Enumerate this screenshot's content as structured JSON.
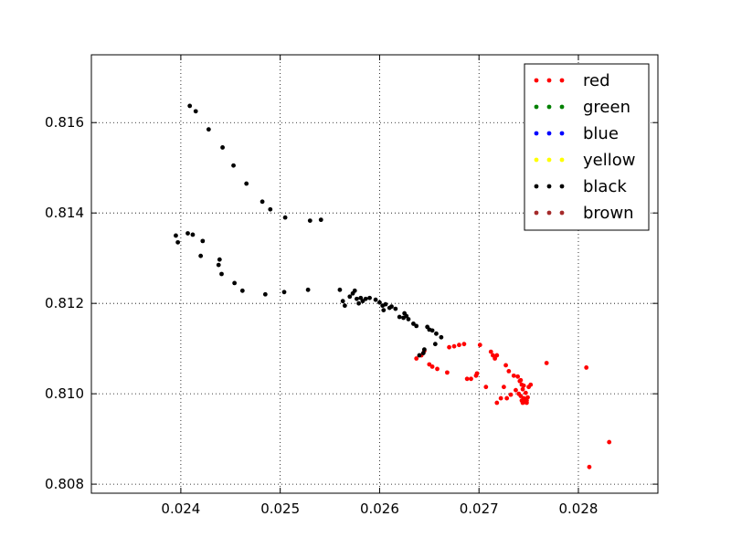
{
  "chart_data": {
    "type": "scatter",
    "title": "",
    "xlabel": "",
    "ylabel": "",
    "xlim": [
      0.0231,
      0.0288
    ],
    "ylim": [
      0.8078,
      0.8175
    ],
    "grid": true,
    "legend_position": "top-right",
    "x_ticks": [
      {
        "value": 0.024,
        "label": "0.024"
      },
      {
        "value": 0.025,
        "label": "0.025"
      },
      {
        "value": 0.026,
        "label": "0.026"
      },
      {
        "value": 0.027,
        "label": "0.027"
      },
      {
        "value": 0.028,
        "label": "0.028"
      }
    ],
    "y_ticks": [
      {
        "value": 0.808,
        "label": "0.808"
      },
      {
        "value": 0.81,
        "label": "0.810"
      },
      {
        "value": 0.812,
        "label": "0.812"
      },
      {
        "value": 0.814,
        "label": "0.814"
      },
      {
        "value": 0.816,
        "label": "0.816"
      }
    ],
    "series": [
      {
        "name": "red",
        "color": "#ff0000",
        "points": [
          [
            0.02637,
            0.81078
          ],
          [
            0.02642,
            0.81085
          ],
          [
            0.02645,
            0.81095
          ],
          [
            0.0265,
            0.81065
          ],
          [
            0.02653,
            0.8106
          ],
          [
            0.02658,
            0.81055
          ],
          [
            0.02668,
            0.81047
          ],
          [
            0.0267,
            0.81103
          ],
          [
            0.02675,
            0.81105
          ],
          [
            0.0268,
            0.81108
          ],
          [
            0.02685,
            0.8111
          ],
          [
            0.02688,
            0.81033
          ],
          [
            0.02692,
            0.81033
          ],
          [
            0.02697,
            0.8104
          ],
          [
            0.02698,
            0.81045
          ],
          [
            0.02701,
            0.81108
          ],
          [
            0.02707,
            0.81015
          ],
          [
            0.02712,
            0.81093
          ],
          [
            0.02714,
            0.81085
          ],
          [
            0.02716,
            0.81078
          ],
          [
            0.02718,
            0.81085
          ],
          [
            0.02718,
            0.8098
          ],
          [
            0.02722,
            0.8099
          ],
          [
            0.02725,
            0.81015
          ],
          [
            0.02727,
            0.81063
          ],
          [
            0.02728,
            0.8099
          ],
          [
            0.0273,
            0.8105
          ],
          [
            0.02732,
            0.80998
          ],
          [
            0.02735,
            0.8104
          ],
          [
            0.02737,
            0.81008
          ],
          [
            0.02739,
            0.81038
          ],
          [
            0.0274,
            0.81
          ],
          [
            0.02741,
            0.81028
          ],
          [
            0.02742,
            0.80995
          ],
          [
            0.02743,
            0.8102
          ],
          [
            0.02743,
            0.80985
          ],
          [
            0.02744,
            0.8101
          ],
          [
            0.02745,
            0.8099
          ],
          [
            0.02745,
            0.81018
          ],
          [
            0.02746,
            0.80982
          ],
          [
            0.02747,
            0.81002
          ],
          [
            0.02748,
            0.80985
          ],
          [
            0.02749,
            0.80992
          ],
          [
            0.0275,
            0.81015
          ],
          [
            0.02752,
            0.8102
          ],
          [
            0.02742,
            0.8103
          ],
          [
            0.02744,
            0.8098
          ],
          [
            0.02746,
            0.80985
          ],
          [
            0.02748,
            0.8098
          ],
          [
            0.02768,
            0.81068
          ],
          [
            0.02808,
            0.81058
          ],
          [
            0.02811,
            0.80838
          ],
          [
            0.02831,
            0.80893
          ]
        ]
      },
      {
        "name": "green",
        "color": "#008000",
        "points": []
      },
      {
        "name": "blue",
        "color": "#0000ff",
        "points": []
      },
      {
        "name": "yellow",
        "color": "#ffff00",
        "points": []
      },
      {
        "name": "black",
        "color": "#000000",
        "points": [
          [
            0.02409,
            0.81637
          ],
          [
            0.02415,
            0.81625
          ],
          [
            0.02428,
            0.81585
          ],
          [
            0.02442,
            0.81545
          ],
          [
            0.02453,
            0.81505
          ],
          [
            0.02466,
            0.81465
          ],
          [
            0.02482,
            0.81425
          ],
          [
            0.0249,
            0.81408
          ],
          [
            0.02505,
            0.8139
          ],
          [
            0.0253,
            0.81383
          ],
          [
            0.02541,
            0.81385
          ],
          [
            0.02395,
            0.8135
          ],
          [
            0.02397,
            0.81335
          ],
          [
            0.02407,
            0.81355
          ],
          [
            0.02412,
            0.81352
          ],
          [
            0.02422,
            0.81338
          ],
          [
            0.0242,
            0.81305
          ],
          [
            0.02439,
            0.81297
          ],
          [
            0.02438,
            0.81285
          ],
          [
            0.02441,
            0.81265
          ],
          [
            0.02454,
            0.81245
          ],
          [
            0.02462,
            0.81228
          ],
          [
            0.02485,
            0.8122
          ],
          [
            0.02504,
            0.81225
          ],
          [
            0.02528,
            0.8123
          ],
          [
            0.0256,
            0.8123
          ],
          [
            0.02563,
            0.81205
          ],
          [
            0.02565,
            0.81195
          ],
          [
            0.0257,
            0.81215
          ],
          [
            0.02573,
            0.81222
          ],
          [
            0.02575,
            0.81228
          ],
          [
            0.02577,
            0.8121
          ],
          [
            0.02579,
            0.812
          ],
          [
            0.02581,
            0.81212
          ],
          [
            0.02583,
            0.81205
          ],
          [
            0.02586,
            0.8121
          ],
          [
            0.0259,
            0.81212
          ],
          [
            0.02596,
            0.81208
          ],
          [
            0.026,
            0.81202
          ],
          [
            0.02603,
            0.81195
          ],
          [
            0.02606,
            0.81198
          ],
          [
            0.02604,
            0.81185
          ],
          [
            0.0261,
            0.8119
          ],
          [
            0.02612,
            0.81193
          ],
          [
            0.02616,
            0.81188
          ],
          [
            0.0262,
            0.8117
          ],
          [
            0.02624,
            0.81168
          ],
          [
            0.02625,
            0.81178
          ],
          [
            0.02627,
            0.81172
          ],
          [
            0.02629,
            0.81165
          ],
          [
            0.02634,
            0.81155
          ],
          [
            0.02637,
            0.8115
          ],
          [
            0.02648,
            0.81148
          ],
          [
            0.0265,
            0.81142
          ],
          [
            0.02653,
            0.8114
          ],
          [
            0.02657,
            0.81133
          ],
          [
            0.02656,
            0.8111
          ],
          [
            0.02662,
            0.81125
          ],
          [
            0.02645,
            0.81098
          ],
          [
            0.02644,
            0.8109
          ],
          [
            0.0264,
            0.81085
          ]
        ]
      },
      {
        "name": "brown",
        "color": "#a52a2a",
        "points": []
      }
    ]
  }
}
